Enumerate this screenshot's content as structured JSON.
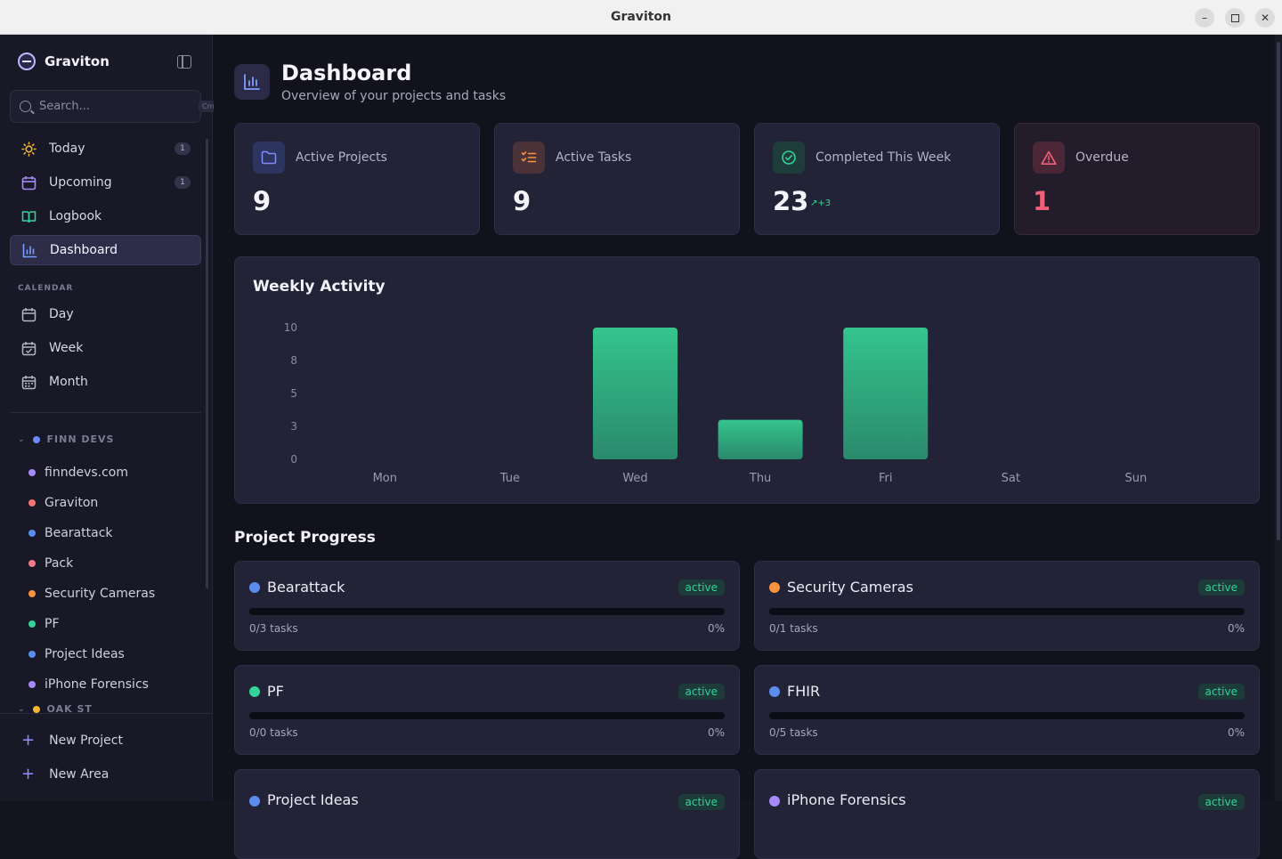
{
  "window": {
    "title": "Graviton"
  },
  "sidebar": {
    "brand": "Graviton",
    "search": {
      "placeholder": "Search...",
      "shortcut": "Cmd+K"
    },
    "nav": [
      {
        "label": "Today",
        "badge": "1",
        "icon": "sun-icon"
      },
      {
        "label": "Upcoming",
        "badge": "1",
        "icon": "calendar-icon"
      },
      {
        "label": "Logbook",
        "icon": "book-icon"
      },
      {
        "label": "Dashboard",
        "icon": "bar-chart-icon",
        "active": true
      }
    ],
    "calendar_label": "CALENDAR",
    "calendar": [
      {
        "label": "Day",
        "icon": "calendar-day-icon"
      },
      {
        "label": "Week",
        "icon": "calendar-week-icon"
      },
      {
        "label": "Month",
        "icon": "calendar-month-icon"
      }
    ],
    "areas": [
      {
        "name": "FINN DEVS",
        "color": "#6b8cff"
      },
      {
        "name": "OAK ST",
        "color": "#f5b731"
      }
    ],
    "projects": [
      {
        "label": "finndevs.com",
        "color": "#a78bfa"
      },
      {
        "label": "Graviton",
        "color": "#f47272"
      },
      {
        "label": "Bearattack",
        "color": "#5b8def"
      },
      {
        "label": "Pack",
        "color": "#f47a8a"
      },
      {
        "label": "Security Cameras",
        "color": "#fb923c"
      },
      {
        "label": "PF",
        "color": "#34d399"
      },
      {
        "label": "Project Ideas",
        "color": "#5b8def"
      },
      {
        "label": "iPhone Forensics",
        "color": "#a78bfa"
      }
    ],
    "footer": {
      "new_project": "New Project",
      "new_area": "New Area"
    }
  },
  "header": {
    "title": "Dashboard",
    "subtitle": "Overview of your projects and tasks"
  },
  "stats": [
    {
      "label": "Active Projects",
      "value": "9",
      "icon": "folder-icon",
      "color": "#7c8cff"
    },
    {
      "label": "Active Tasks",
      "value": "9",
      "icon": "checklist-icon",
      "color": "#fb923c"
    },
    {
      "label": "Completed This Week",
      "value": "23",
      "trend": "+3",
      "icon": "check-circle-icon",
      "color": "#34d399"
    },
    {
      "label": "Overdue",
      "value": "1",
      "icon": "alert-triangle-icon",
      "color": "#f25f7a"
    }
  ],
  "chart_data": {
    "type": "bar",
    "title": "Weekly Activity",
    "categories": [
      "Mon",
      "Tue",
      "Wed",
      "Thu",
      "Fri",
      "Sat",
      "Sun"
    ],
    "values": [
      0,
      0,
      10,
      3,
      10,
      0,
      0
    ],
    "y_ticks": [
      "10",
      "8",
      "5",
      "3",
      "0"
    ],
    "ylim": [
      0,
      10
    ],
    "color": "#34d399",
    "grid": false,
    "legend": false
  },
  "progress": {
    "title": "Project Progress",
    "projects": [
      {
        "name": "Bearattack",
        "status": "active",
        "tasks": "0/3 tasks",
        "percent": "0%",
        "progress": 0,
        "color": "#5b8def"
      },
      {
        "name": "Security Cameras",
        "status": "active",
        "tasks": "0/1 tasks",
        "percent": "0%",
        "progress": 0,
        "color": "#fb923c"
      },
      {
        "name": "PF",
        "status": "active",
        "tasks": "0/0 tasks",
        "percent": "0%",
        "progress": 0,
        "color": "#34d399"
      },
      {
        "name": "FHIR",
        "status": "active",
        "tasks": "0/5 tasks",
        "percent": "0%",
        "progress": 0,
        "color": "#5b8def"
      },
      {
        "name": "Project Ideas",
        "status": "active",
        "color": "#5b8def"
      },
      {
        "name": "iPhone Forensics",
        "status": "active",
        "color": "#a78bfa"
      }
    ]
  }
}
